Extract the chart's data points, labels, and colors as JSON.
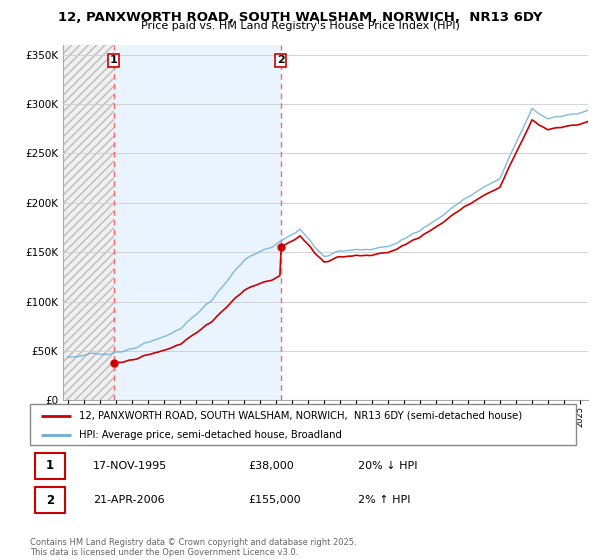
{
  "title1": "12, PANXWORTH ROAD, SOUTH WALSHAM, NORWICH,  NR13 6DY",
  "title2": "Price paid vs. HM Land Registry's House Price Index (HPI)",
  "legend_line1": "12, PANXWORTH ROAD, SOUTH WALSHAM, NORWICH,  NR13 6DY (semi-detached house)",
  "legend_line2": "HPI: Average price, semi-detached house, Broadland",
  "sale1_date": "17-NOV-1995",
  "sale1_price": 38000,
  "sale1_hpi": "20% ↓ HPI",
  "sale2_date": "21-APR-2006",
  "sale2_price": 155000,
  "sale2_hpi": "2% ↑ HPI",
  "copyright": "Contains HM Land Registry data © Crown copyright and database right 2025.\nThis data is licensed under the Open Government Licence v3.0.",
  "hpi_line_color": "#6baed6",
  "price_line_color": "#cc0000",
  "ylim": [
    0,
    360000
  ],
  "xlim_start": 1992.7,
  "xlim_end": 2025.5,
  "sale1_year_f": 1995.875,
  "sale2_year_f": 2006.3
}
